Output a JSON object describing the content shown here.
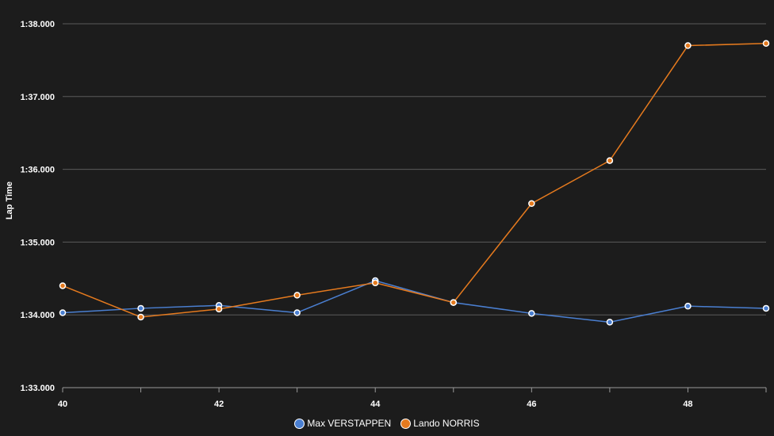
{
  "chart_data": {
    "type": "line",
    "xlabel": "",
    "ylabel": "Lap Time",
    "x": [
      40,
      41,
      42,
      43,
      44,
      45,
      46,
      47,
      48,
      49
    ],
    "xlim": [
      40,
      49
    ],
    "x_ticks": [
      40,
      42,
      44,
      46,
      48
    ],
    "x_tick_labels": [
      "40",
      "42",
      "44",
      "46",
      "48"
    ],
    "ylim": [
      93.0,
      98.0
    ],
    "y_ticks": [
      93,
      94,
      95,
      96,
      97,
      98
    ],
    "y_tick_labels": [
      "1:33.000",
      "1:34.000",
      "1:35.000",
      "1:36.000",
      "1:37.000",
      "1:38.000"
    ],
    "grid": true,
    "legend_position": "bottom",
    "series": [
      {
        "name": "Max VERSTAPPEN",
        "color": "#4a7fd1",
        "values": [
          94.03,
          94.09,
          94.13,
          94.03,
          94.47,
          94.17,
          94.02,
          93.9,
          94.12,
          94.09
        ]
      },
      {
        "name": "Lando NORRIS",
        "color": "#e57a1e",
        "values": [
          94.4,
          93.97,
          94.08,
          94.27,
          94.44,
          94.17,
          95.53,
          96.12,
          97.7,
          97.73
        ]
      }
    ]
  }
}
